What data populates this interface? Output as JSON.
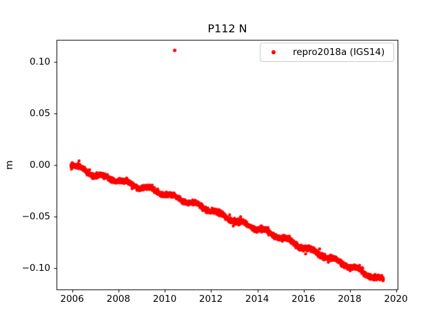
{
  "figure": {
    "background": "#ffffff",
    "text_color": "#000000",
    "spine_color": "#000000",
    "legend_border_color": "#cccccc"
  },
  "chart_data": {
    "type": "scatter",
    "title": "P112 N",
    "xlabel": "",
    "ylabel": "m",
    "xlim": [
      2005.326,
      2020.084
    ],
    "ylim": [
      -0.1211,
      0.1211
    ],
    "grid": false,
    "xticks": [
      2006,
      2008,
      2010,
      2012,
      2014,
      2016,
      2018,
      2020
    ],
    "xtick_labels": [
      "2006",
      "2008",
      "2010",
      "2012",
      "2014",
      "2016",
      "2018",
      "2020"
    ],
    "yticks": [
      0.1,
      0.05,
      0.0,
      -0.05,
      -0.1
    ],
    "ytick_labels": [
      "0.10",
      "0.05",
      "0.00",
      "−0.05",
      "−0.10"
    ],
    "legend": {
      "position": "upper right",
      "entries": [
        {
          "label": "repro2018a (IGS14)",
          "marker": "dot",
          "color": "#ff0000"
        }
      ]
    },
    "series": [
      {
        "name": "repro2018a (IGS14)",
        "color": "#ff0000",
        "marker": "point",
        "marker_radius_px": 2.2,
        "x_start": 2005.95,
        "x_end": 2019.44,
        "n_points": 3200,
        "trend_control_points": [
          [
            2005.95,
            0.001
          ],
          [
            2006.3,
            -0.003
          ],
          [
            2007.0,
            -0.01
          ],
          [
            2008.0,
            -0.015
          ],
          [
            2009.0,
            -0.0215
          ],
          [
            2010.0,
            -0.028
          ],
          [
            2011.0,
            -0.0355
          ],
          [
            2012.0,
            -0.044
          ],
          [
            2013.0,
            -0.0535
          ],
          [
            2014.0,
            -0.0615
          ],
          [
            2015.0,
            -0.07
          ],
          [
            2016.0,
            -0.0795
          ],
          [
            2017.0,
            -0.089
          ],
          [
            2018.0,
            -0.098
          ],
          [
            2018.6,
            -0.1045
          ],
          [
            2019.1,
            -0.109
          ],
          [
            2019.44,
            -0.1115
          ]
        ],
        "seasonal_amplitude": 0.0016,
        "seasonal_phase": 0.1,
        "noise_sigma": 0.0011,
        "outliers": [
          [
            2010.43,
            0.111
          ]
        ]
      }
    ]
  }
}
